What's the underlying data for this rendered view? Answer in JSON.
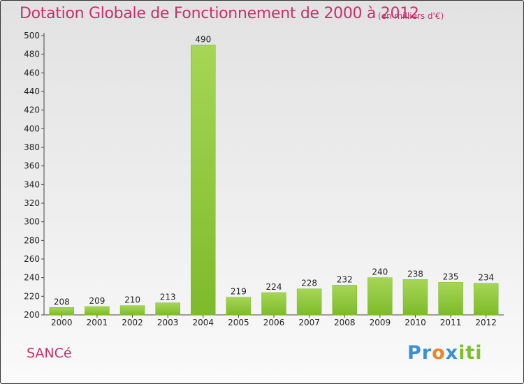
{
  "chart_data": {
    "type": "bar",
    "title": "Dotation Globale de Fonctionnement de 2000 à 2012",
    "unit_note": "(en milliers d'€)",
    "categories": [
      "2000",
      "2001",
      "2002",
      "2003",
      "2004",
      "2005",
      "2006",
      "2007",
      "2008",
      "2009",
      "2010",
      "2011",
      "2012"
    ],
    "values": [
      208,
      209,
      210,
      213,
      490,
      219,
      224,
      228,
      232,
      240,
      238,
      235,
      234
    ],
    "ylim": [
      200,
      500
    ],
    "ytick_step": 20,
    "xlabel": "",
    "ylabel": "",
    "grid": false,
    "bar_color": "#7dbb2b",
    "bar_color_light": "#a6d655"
  },
  "footer": {
    "commune_name": "SANCé",
    "logo_text": "Proxiti"
  },
  "colors": {
    "title": "#c8306a",
    "brand_blue": "#3a8fd6",
    "brand_orange": "#e8862a",
    "brand_green": "#7cbf2a"
  }
}
